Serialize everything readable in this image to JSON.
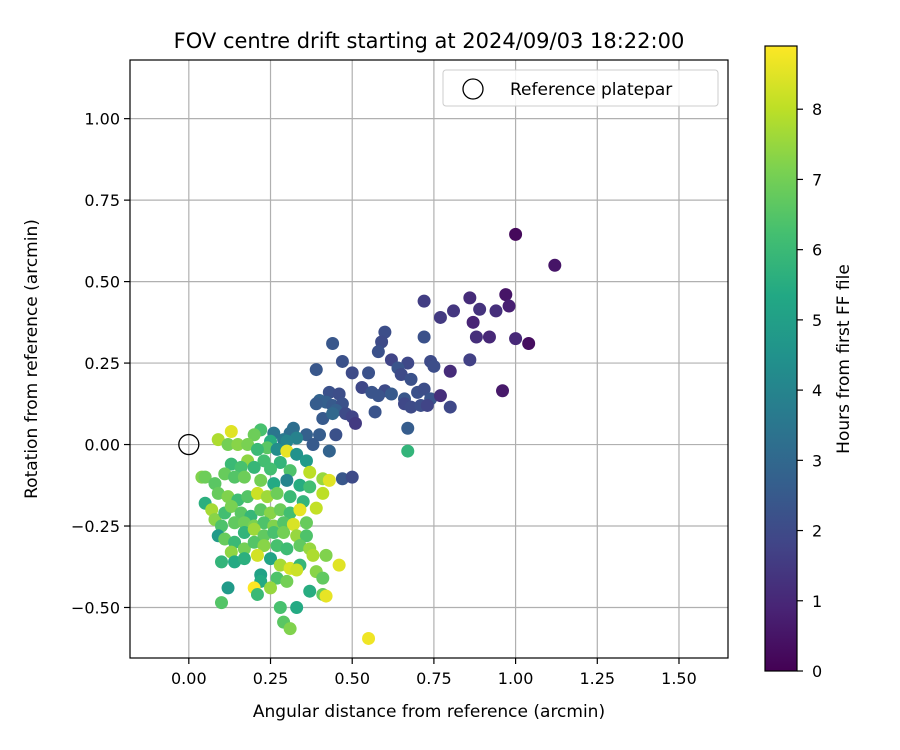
{
  "chart_data": {
    "type": "scatter",
    "title": "FOV centre drift starting at 2024/09/03 18:22:00",
    "xlabel": "Angular distance from reference (arcmin)",
    "ylabel": "Rotation from reference (arcmin)",
    "xlim": [
      -0.18,
      1.65
    ],
    "ylim": [
      -0.655,
      1.18
    ],
    "x_ticks": [
      0.0,
      0.25,
      0.5,
      0.75,
      1.0,
      1.25,
      1.5
    ],
    "x_tick_labels": [
      "0.00",
      "0.25",
      "0.50",
      "0.75",
      "1.00",
      "1.25",
      "1.50"
    ],
    "y_ticks": [
      -0.5,
      -0.25,
      0.0,
      0.25,
      0.5,
      0.75,
      1.0
    ],
    "y_tick_labels": [
      "−0.50",
      "−0.25",
      "0.00",
      "0.25",
      "0.50",
      "0.75",
      "1.00"
    ],
    "grid": true,
    "legend": {
      "position": "top-right",
      "entries": [
        "Reference platepar"
      ]
    },
    "reference_point": {
      "x": 0.0,
      "y": 0.0,
      "label": "Reference platepar"
    },
    "colorbar": {
      "label": "Hours from first FF file",
      "colormap": "viridis",
      "range": [
        0,
        8.9
      ],
      "ticks": [
        0,
        1,
        2,
        3,
        4,
        5,
        6,
        7,
        8
      ],
      "tick_labels": [
        "0",
        "1",
        "2",
        "3",
        "4",
        "5",
        "6",
        "7",
        "8"
      ]
    },
    "series": [
      {
        "columns": [
          "x",
          "y",
          "hours"
        ],
        "points": [
          [
            1.0,
            0.645,
            0.2
          ],
          [
            1.12,
            0.55,
            0.5
          ],
          [
            0.97,
            0.46,
            0.5
          ],
          [
            0.98,
            0.425,
            0.8
          ],
          [
            0.86,
            0.45,
            1.1
          ],
          [
            0.72,
            0.44,
            1.6
          ],
          [
            0.81,
            0.41,
            1.4
          ],
          [
            0.89,
            0.415,
            1.3
          ],
          [
            0.94,
            0.41,
            1.2
          ],
          [
            0.77,
            0.39,
            1.5
          ],
          [
            0.87,
            0.375,
            0.9
          ],
          [
            0.88,
            0.33,
            1.2
          ],
          [
            0.92,
            0.33,
            1.0
          ],
          [
            1.0,
            0.325,
            1.0
          ],
          [
            1.04,
            0.31,
            0.3
          ],
          [
            0.6,
            0.345,
            2.1
          ],
          [
            0.59,
            0.315,
            2.0
          ],
          [
            0.44,
            0.31,
            2.4
          ],
          [
            0.72,
            0.33,
            2.2
          ],
          [
            0.58,
            0.285,
            2.2
          ],
          [
            0.62,
            0.26,
            1.8
          ],
          [
            0.67,
            0.25,
            1.9
          ],
          [
            0.74,
            0.255,
            2.0
          ],
          [
            0.86,
            0.26,
            1.7
          ],
          [
            0.64,
            0.235,
            2.3
          ],
          [
            0.75,
            0.24,
            2.1
          ],
          [
            0.8,
            0.225,
            1.1
          ],
          [
            0.47,
            0.255,
            2.2
          ],
          [
            0.39,
            0.23,
            2.4
          ],
          [
            0.5,
            0.22,
            2.0
          ],
          [
            0.55,
            0.22,
            2.2
          ],
          [
            0.65,
            0.215,
            2.0
          ],
          [
            0.68,
            0.2,
            2.2
          ],
          [
            0.53,
            0.175,
            1.9
          ],
          [
            0.56,
            0.16,
            2.3
          ],
          [
            0.6,
            0.165,
            2.0
          ],
          [
            0.62,
            0.155,
            2.5
          ],
          [
            0.7,
            0.16,
            2.2
          ],
          [
            0.72,
            0.17,
            2.1
          ],
          [
            0.96,
            0.165,
            0.6
          ],
          [
            0.43,
            0.16,
            2.2
          ],
          [
            0.46,
            0.155,
            2.1
          ],
          [
            0.58,
            0.15,
            2.3
          ],
          [
            0.66,
            0.14,
            2.4
          ],
          [
            0.74,
            0.14,
            2.3
          ],
          [
            0.77,
            0.15,
            1.2
          ],
          [
            0.4,
            0.135,
            2.8
          ],
          [
            0.42,
            0.13,
            2.7
          ],
          [
            0.39,
            0.125,
            2.6
          ],
          [
            0.44,
            0.12,
            2.5
          ],
          [
            0.47,
            0.125,
            2.2
          ],
          [
            0.66,
            0.125,
            1.9
          ],
          [
            0.68,
            0.115,
            2.0
          ],
          [
            0.71,
            0.12,
            2.1
          ],
          [
            0.73,
            0.12,
            1.8
          ],
          [
            0.8,
            0.115,
            1.9
          ],
          [
            0.45,
            0.105,
            2.7
          ],
          [
            0.48,
            0.095,
            2.0
          ],
          [
            0.5,
            0.085,
            1.8
          ],
          [
            0.57,
            0.1,
            2.3
          ],
          [
            0.51,
            0.065,
            1.5
          ],
          [
            0.41,
            0.08,
            2.5
          ],
          [
            0.44,
            0.095,
            3.0
          ],
          [
            0.32,
            0.05,
            3.2
          ],
          [
            0.36,
            0.03,
            2.7
          ],
          [
            0.4,
            0.03,
            2.6
          ],
          [
            0.45,
            0.03,
            2.2
          ],
          [
            0.67,
            0.05,
            2.6
          ],
          [
            0.38,
            0.0,
            2.5
          ],
          [
            0.43,
            -0.02,
            2.8
          ],
          [
            0.67,
            -0.02,
            5.8
          ],
          [
            0.47,
            -0.105,
            2.4
          ],
          [
            0.5,
            -0.1,
            2.0
          ],
          [
            0.31,
            0.035,
            3.2
          ],
          [
            0.29,
            0.015,
            3.6
          ],
          [
            0.33,
            0.02,
            3.9
          ],
          [
            0.26,
            0.035,
            3.5
          ],
          [
            0.22,
            0.045,
            6.3
          ],
          [
            0.2,
            0.03,
            6.9
          ],
          [
            0.25,
            0.01,
            5.5
          ],
          [
            0.3,
            0.01,
            4.0
          ],
          [
            0.13,
            0.04,
            8.5
          ],
          [
            0.09,
            0.015,
            7.8
          ],
          [
            0.12,
            0.0,
            7.0
          ],
          [
            0.15,
            0.0,
            7.3
          ],
          [
            0.18,
            0.0,
            7.1
          ],
          [
            0.24,
            -0.01,
            6.6
          ],
          [
            0.21,
            -0.015,
            6.0
          ],
          [
            0.27,
            -0.015,
            4.3
          ],
          [
            0.3,
            -0.02,
            8.6
          ],
          [
            0.33,
            -0.03,
            4.5
          ],
          [
            0.36,
            -0.05,
            4.8
          ],
          [
            0.23,
            -0.05,
            6.2
          ],
          [
            0.28,
            -0.055,
            5.8
          ],
          [
            0.18,
            -0.05,
            7.4
          ],
          [
            0.13,
            -0.06,
            6.0
          ],
          [
            0.16,
            -0.07,
            6.3
          ],
          [
            0.2,
            -0.07,
            5.9
          ],
          [
            0.25,
            -0.075,
            6.2
          ],
          [
            0.31,
            -0.08,
            6.4
          ],
          [
            0.37,
            -0.085,
            8.0
          ],
          [
            0.41,
            -0.105,
            7.5
          ],
          [
            0.43,
            -0.11,
            8.5
          ],
          [
            0.04,
            -0.1,
            7.2
          ],
          [
            0.05,
            -0.1,
            6.9
          ],
          [
            0.08,
            -0.12,
            6.6
          ],
          [
            0.11,
            -0.09,
            6.8
          ],
          [
            0.14,
            -0.1,
            6.5
          ],
          [
            0.17,
            -0.1,
            6.9
          ],
          [
            0.22,
            -0.11,
            7.0
          ],
          [
            0.26,
            -0.12,
            5.4
          ],
          [
            0.3,
            -0.11,
            4.0
          ],
          [
            0.34,
            -0.125,
            5.5
          ],
          [
            0.37,
            -0.13,
            6.2
          ],
          [
            0.05,
            -0.18,
            5.6
          ],
          [
            0.09,
            -0.15,
            6.8
          ],
          [
            0.12,
            -0.16,
            7.2
          ],
          [
            0.15,
            -0.17,
            6.1
          ],
          [
            0.18,
            -0.16,
            6.5
          ],
          [
            0.21,
            -0.15,
            8.2
          ],
          [
            0.24,
            -0.16,
            7.6
          ],
          [
            0.27,
            -0.15,
            6.9
          ],
          [
            0.31,
            -0.16,
            6.0
          ],
          [
            0.35,
            -0.175,
            5.8
          ],
          [
            0.41,
            -0.15,
            8.0
          ],
          [
            0.07,
            -0.2,
            7.7
          ],
          [
            0.08,
            -0.23,
            7.3
          ],
          [
            0.11,
            -0.21,
            6.2
          ],
          [
            0.13,
            -0.19,
            7.1
          ],
          [
            0.16,
            -0.21,
            6.6
          ],
          [
            0.19,
            -0.22,
            5.9
          ],
          [
            0.22,
            -0.2,
            6.6
          ],
          [
            0.25,
            -0.21,
            7.3
          ],
          [
            0.28,
            -0.2,
            6.9
          ],
          [
            0.31,
            -0.21,
            6.2
          ],
          [
            0.34,
            -0.2,
            8.6
          ],
          [
            0.39,
            -0.195,
            8.1
          ],
          [
            0.1,
            -0.25,
            6.4
          ],
          [
            0.09,
            -0.28,
            4.8
          ],
          [
            0.14,
            -0.24,
            6.7
          ],
          [
            0.17,
            -0.24,
            6.9
          ],
          [
            0.2,
            -0.25,
            7.1
          ],
          [
            0.23,
            -0.24,
            6.4
          ],
          [
            0.26,
            -0.25,
            7.2
          ],
          [
            0.29,
            -0.24,
            6.5
          ],
          [
            0.32,
            -0.245,
            8.4
          ],
          [
            0.36,
            -0.24,
            6.8
          ],
          [
            0.11,
            -0.29,
            6.8
          ],
          [
            0.14,
            -0.3,
            6.0
          ],
          [
            0.17,
            -0.27,
            5.8
          ],
          [
            0.2,
            -0.26,
            7.6
          ],
          [
            0.23,
            -0.28,
            6.7
          ],
          [
            0.26,
            -0.27,
            6.3
          ],
          [
            0.29,
            -0.27,
            7.0
          ],
          [
            0.33,
            -0.28,
            7.5
          ],
          [
            0.36,
            -0.28,
            6.4
          ],
          [
            0.13,
            -0.33,
            7.4
          ],
          [
            0.17,
            -0.32,
            7.0
          ],
          [
            0.2,
            -0.3,
            6.5
          ],
          [
            0.23,
            -0.31,
            7.3
          ],
          [
            0.27,
            -0.31,
            6.3
          ],
          [
            0.3,
            -0.32,
            6.1
          ],
          [
            0.34,
            -0.31,
            6.7
          ],
          [
            0.1,
            -0.36,
            5.8
          ],
          [
            0.14,
            -0.36,
            5.4
          ],
          [
            0.17,
            -0.35,
            5.6
          ],
          [
            0.21,
            -0.34,
            8.3
          ],
          [
            0.25,
            -0.35,
            5.2
          ],
          [
            0.28,
            -0.37,
            7.7
          ],
          [
            0.31,
            -0.38,
            8.4
          ],
          [
            0.34,
            -0.37,
            5.9
          ],
          [
            0.37,
            -0.32,
            7.5
          ],
          [
            0.38,
            -0.34,
            7.8
          ],
          [
            0.42,
            -0.34,
            7.2
          ],
          [
            0.46,
            -0.37,
            8.5
          ],
          [
            0.22,
            -0.4,
            5.1
          ],
          [
            0.22,
            -0.42,
            5.4
          ],
          [
            0.27,
            -0.41,
            6.4
          ],
          [
            0.3,
            -0.42,
            7.0
          ],
          [
            0.33,
            -0.385,
            8.2
          ],
          [
            0.39,
            -0.39,
            7.3
          ],
          [
            0.41,
            -0.41,
            6.7
          ],
          [
            0.2,
            -0.44,
            8.9
          ],
          [
            0.25,
            -0.44,
            7.5
          ],
          [
            0.12,
            -0.44,
            4.8
          ],
          [
            0.21,
            -0.46,
            6.0
          ],
          [
            0.37,
            -0.45,
            5.5
          ],
          [
            0.41,
            -0.46,
            6.8
          ],
          [
            0.42,
            -0.465,
            8.6
          ],
          [
            0.1,
            -0.485,
            6.5
          ],
          [
            0.28,
            -0.5,
            6.3
          ],
          [
            0.33,
            -0.5,
            5.4
          ],
          [
            0.29,
            -0.545,
            6.6
          ],
          [
            0.31,
            -0.565,
            7.2
          ],
          [
            0.55,
            -0.595,
            8.7
          ]
        ]
      }
    ]
  }
}
